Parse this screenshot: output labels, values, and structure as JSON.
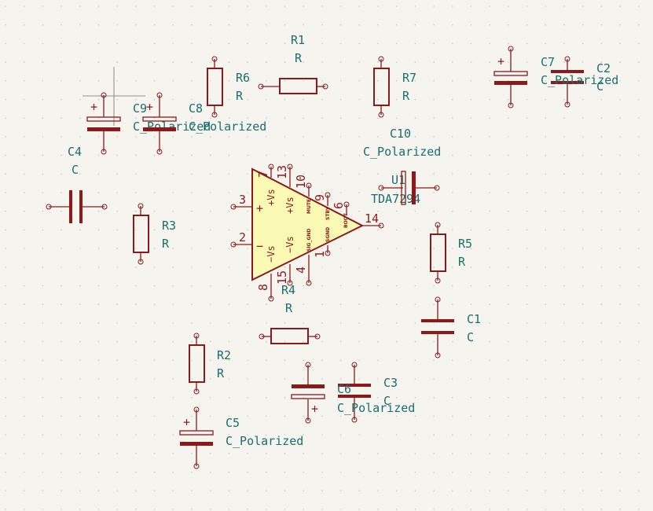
{
  "schematic": {
    "background": "#f5f4ef",
    "grid_dot_color": "#c8c8c0",
    "symbol_color": "#8c1a1a",
    "label_color": "#1a6e6e",
    "amp_fill": "#fafab4",
    "components": {
      "R1": {
        "ref": "R1",
        "value": "R"
      },
      "R2": {
        "ref": "R2",
        "value": "R"
      },
      "R3": {
        "ref": "R3",
        "value": "R"
      },
      "R4": {
        "ref": "R4",
        "value": "R"
      },
      "R5": {
        "ref": "R5",
        "value": "R"
      },
      "R6": {
        "ref": "R6",
        "value": "R"
      },
      "R7": {
        "ref": "R7",
        "value": "R"
      },
      "C1": {
        "ref": "C1",
        "value": "C"
      },
      "C2": {
        "ref": "C2",
        "value": "C"
      },
      "C3": {
        "ref": "C3",
        "value": "C"
      },
      "C4": {
        "ref": "C4",
        "value": "C"
      },
      "C5": {
        "ref": "C5",
        "value": "C_Polarized"
      },
      "C6": {
        "ref": "C6",
        "value": "C_Polarized"
      },
      "C7": {
        "ref": "C7",
        "value": "C_Polarized"
      },
      "C8": {
        "ref": "C8",
        "value": "C_Polarized"
      },
      "C9": {
        "ref": "C9",
        "value": "C_Polarized"
      },
      "C10": {
        "ref": "C10",
        "value": "C_Polarized"
      },
      "U1": {
        "ref": "U1",
        "value": "TDA7294"
      }
    },
    "amp": {
      "plus": "+",
      "minus": "−",
      "pins": {
        "p3": "3",
        "p2": "2",
        "p7": "7",
        "p13": "13",
        "p10": "10",
        "p9": "9",
        "p6": "6",
        "p14": "14",
        "p8": "8",
        "p15": "15",
        "p4": "4",
        "p1": "1"
      },
      "names": {
        "vs_plus_a": "+Vs",
        "vs_plus_b": "+Vs",
        "vs_minus_a": "−Vs",
        "vs_minus_b": "−Vs",
        "mute": "MUTE",
        "stby": "STBY",
        "boot": "BOOT",
        "sgnd": "SGND",
        "sig_gnd": "SIG_GND"
      }
    }
  }
}
